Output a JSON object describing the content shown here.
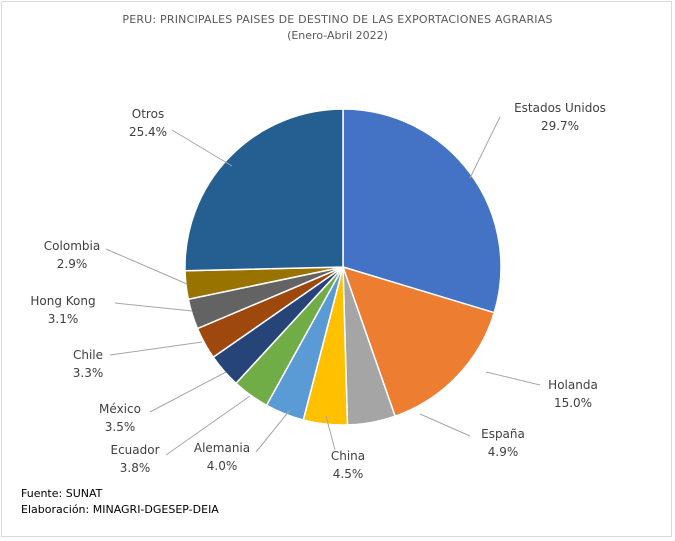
{
  "chart_data": {
    "type": "pie",
    "title": "PERU: PRINCIPALES PAISES DE DESTINO DE LAS EXPORTACIONES AGRARIAS",
    "subtitle": "(Enero-Abril 2022)",
    "categories": [
      "Estados Unidos",
      "Holanda",
      "España",
      "China",
      "Alemania",
      "Ecuador",
      "México",
      "Chile",
      "Hong Kong",
      "Colombia",
      "Otros"
    ],
    "values": [
      29.7,
      15.0,
      4.9,
      4.5,
      4.0,
      3.8,
      3.5,
      3.3,
      3.1,
      2.9,
      25.4
    ],
    "value_labels": [
      "29.7%",
      "15.0%",
      "4.9%",
      "4.5%",
      "4.0%",
      "3.8%",
      "3.5%",
      "3.3%",
      "3.1%",
      "2.9%",
      "25.4%"
    ],
    "colors": [
      "#4472C4",
      "#ED7D31",
      "#A5A5A5",
      "#FFC000",
      "#5B9BD5",
      "#70AD47",
      "#264478",
      "#9E480E",
      "#636363",
      "#997300",
      "#255E91"
    ],
    "start": "12 o'clock, clockwise",
    "legend": "none (data labels with leader lines)"
  },
  "footer": {
    "source": "Fuente:  SUNAT",
    "credit": "Elaboración: MINAGRI-DGESEP-DEIA"
  }
}
